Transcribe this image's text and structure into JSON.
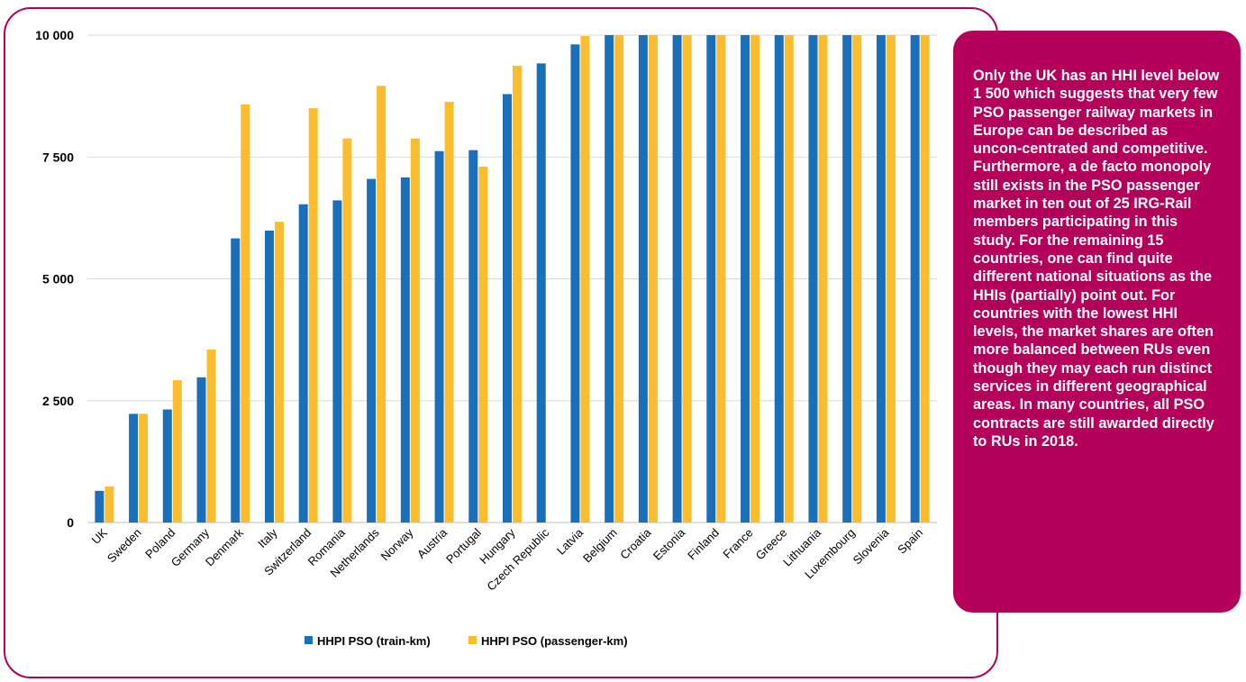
{
  "chart_data": {
    "type": "bar",
    "categories": [
      "UK",
      "Sweden",
      "Poland",
      "Germany",
      "Denmark",
      "Italy",
      "Switzerland",
      "Romania",
      "Netherlands",
      "Norway",
      "Austria",
      "Portugal",
      "Hungary",
      "Czech Republic",
      "Latvia",
      "Belgium",
      "Croatia",
      "Estonia",
      "Finland",
      "France",
      "Greece",
      "Lithuania",
      "Luxembourg",
      "Slovenia",
      "Spain"
    ],
    "series": [
      {
        "name": "HHPI PSO (train-km)",
        "color": "#1a6fba",
        "values": [
          650,
          2230,
          2320,
          2980,
          5830,
          5990,
          6530,
          6610,
          7050,
          7080,
          7620,
          7640,
          8790,
          9420,
          9810,
          10000,
          10000,
          10000,
          10000,
          10000,
          10000,
          10000,
          10000,
          10000,
          10000
        ]
      },
      {
        "name": "HHPI PSO (passenger-km)",
        "color": "#fbbd2d",
        "values": [
          740,
          2230,
          2920,
          3550,
          8580,
          6170,
          8500,
          7880,
          8960,
          7880,
          8630,
          7300,
          9370,
          null,
          9980,
          10000,
          10000,
          10000,
          10000,
          10000,
          10000,
          10000,
          10000,
          10000,
          10000
        ]
      }
    ],
    "yticks": [
      0,
      2500,
      5000,
      7500,
      10000
    ],
    "ytick_labels": [
      "0",
      "2 500",
      "5 000",
      "7 500",
      "10 000"
    ],
    "ylim": [
      0,
      10000
    ],
    "grid": true,
    "legend_position": "bottom-center"
  },
  "note": {
    "text": " Only the UK has an HHI level below 1 500 which suggests that very few PSO passenger railway markets in Europe can be described as uncon-centrated and competitive. Furthermore, a de facto monopoly still exists in the PSO passenger market in ten out of 25 IRG-Rail members participating in this study. For the remaining 15 countries, one can find quite different national situations as the HHIs (partially) point out. For countries with the lowest HHI levels, the market shares are often more balanced between RUs even though they may each run distinct services in different geographical areas. In many countries, all PSO contracts are still awarded directly to RUs in 2018."
  }
}
